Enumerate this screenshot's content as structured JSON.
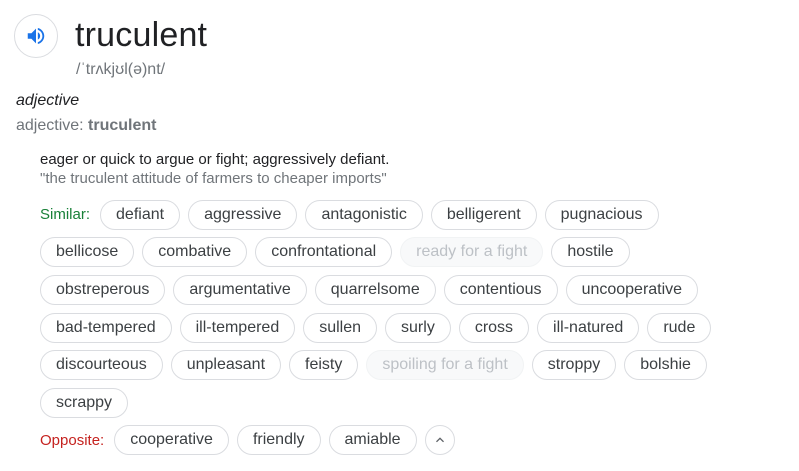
{
  "header": {
    "speaker_icon": "speaker-icon",
    "word": "truculent",
    "phonetic": "/ˈtrʌkjʊl(ə)nt/"
  },
  "part_of_speech": "adjective",
  "lemma": {
    "prefix": "adjective: ",
    "word": "truculent"
  },
  "definition": {
    "text": "eager or quick to argue or fight; aggressively defiant.",
    "example": "\"the truculent attitude of farmers to cheaper imports\""
  },
  "similar_label": "Similar:",
  "opposite_label": "Opposite:",
  "rows": [
    {
      "label": "similar",
      "chips": [
        {
          "text": "defiant"
        },
        {
          "text": "aggressive"
        },
        {
          "text": "antagonistic"
        },
        {
          "text": "belligerent"
        },
        {
          "text": "pugnacious"
        }
      ]
    },
    {
      "chips": [
        {
          "text": "bellicose"
        },
        {
          "text": "combative"
        },
        {
          "text": "confrontational"
        },
        {
          "text": "ready for a fight",
          "dim": true
        },
        {
          "text": "hostile"
        }
      ]
    },
    {
      "chips": [
        {
          "text": "obstreperous"
        },
        {
          "text": "argumentative"
        },
        {
          "text": "quarrelsome"
        },
        {
          "text": "contentious"
        },
        {
          "text": "uncooperative"
        }
      ]
    },
    {
      "chips": [
        {
          "text": "bad-tempered"
        },
        {
          "text": "ill-tempered"
        },
        {
          "text": "sullen"
        },
        {
          "text": "surly"
        },
        {
          "text": "cross"
        },
        {
          "text": "ill-natured"
        },
        {
          "text": "rude"
        }
      ]
    },
    {
      "chips": [
        {
          "text": "discourteous"
        },
        {
          "text": "unpleasant"
        },
        {
          "text": "feisty"
        },
        {
          "text": "spoiling for a fight",
          "dim": true
        },
        {
          "text": "stroppy"
        },
        {
          "text": "bolshie"
        }
      ]
    },
    {
      "chips": [
        {
          "text": "scrappy"
        }
      ]
    },
    {
      "label": "opposite",
      "chips": [
        {
          "text": "cooperative"
        },
        {
          "text": "friendly"
        },
        {
          "text": "amiable"
        }
      ],
      "expand": "chevron-up-icon"
    }
  ],
  "colors": {
    "similar": "#188038",
    "opposite": "#c5221f",
    "speaker": "#1a73e8"
  }
}
